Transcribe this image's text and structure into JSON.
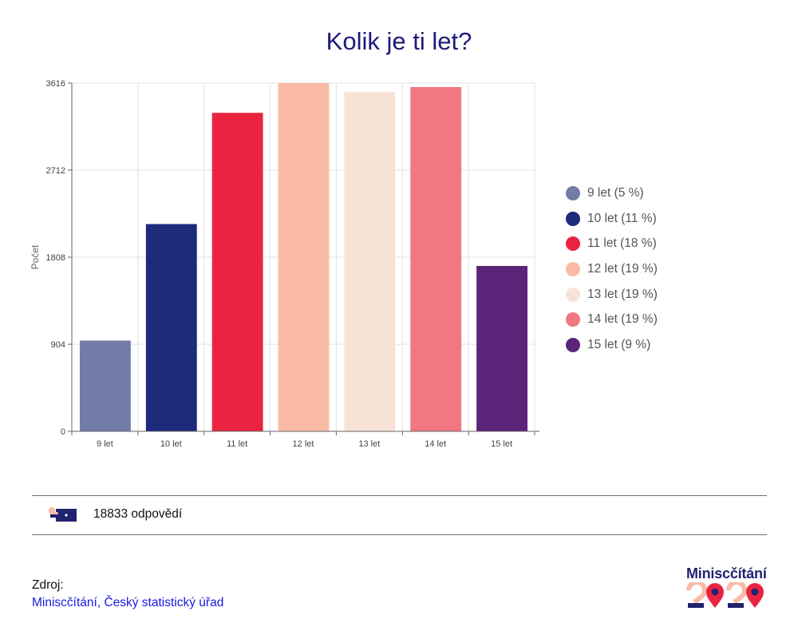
{
  "chart_data": {
    "type": "bar",
    "title": "Kolik je ti let?",
    "ylabel": "Počet",
    "xlabel": "",
    "categories": [
      "9 let",
      "10 let",
      "11 let",
      "12 let",
      "13 let",
      "14 let",
      "15 let"
    ],
    "values": [
      942,
      2152,
      3307,
      3616,
      3524,
      3575,
      1717
    ],
    "colors": [
      "#737ca6",
      "#1e2a7c",
      "#ea2440",
      "#f9bba6",
      "#f7e3d6",
      "#f27783",
      "#5b2478"
    ],
    "yticks": [
      "0",
      "904",
      "1808",
      "2712",
      "3616"
    ],
    "ylim": [
      0,
      3616
    ],
    "grid": true,
    "legend_position": "right",
    "legend": [
      {
        "label": "9 let (5 %)",
        "color": "#737ca6"
      },
      {
        "label": "10 let (11 %)",
        "color": "#1e2a7c"
      },
      {
        "label": "11 let (18 %)",
        "color": "#ea2440"
      },
      {
        "label": "12 let (19 %)",
        "color": "#f9bba6"
      },
      {
        "label": "13 let (19 %)",
        "color": "#f7e3d6"
      },
      {
        "label": "14 let (19 %)",
        "color": "#f27783"
      },
      {
        "label": "15 let (9 %)",
        "color": "#5b2478"
      }
    ]
  },
  "responses_text": "18833 odpovědí",
  "source": {
    "label": "Zdroj:",
    "link_text": "Miniscčítání, Český statistický úřad"
  },
  "logo": {
    "text": "Miniscčítání",
    "year_digits": [
      "2",
      "0",
      "2",
      "0"
    ]
  },
  "icons": {
    "responses": "hand-holding-card-icon"
  },
  "colors": {
    "title": "#1e1a7a",
    "link": "#1a1adf"
  }
}
